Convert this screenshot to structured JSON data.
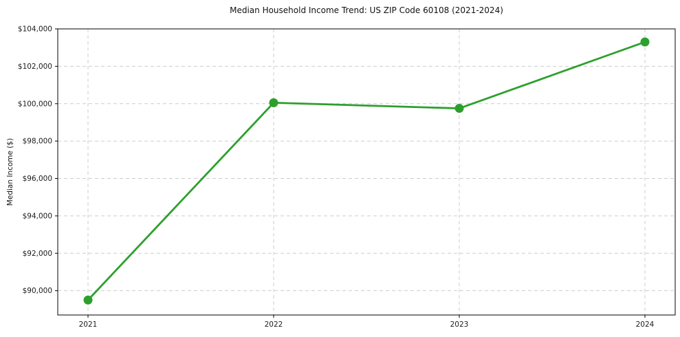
{
  "chart_data": {
    "type": "line",
    "title": "Median Household Income Trend: US ZIP Code 60108 (2021-2024)",
    "ylabel": "Median Income ($)",
    "xlabel": "",
    "x": [
      "2021",
      "2022",
      "2023",
      "2024"
    ],
    "values": [
      89500,
      100050,
      99750,
      103300
    ],
    "yticks": [
      90000,
      92000,
      94000,
      96000,
      98000,
      100000,
      102000,
      104000
    ],
    "ytick_labels": [
      "$90,000",
      "$92,000",
      "$94,000",
      "$96,000",
      "$98,000",
      "$100,000",
      "$102,000",
      "$104,000"
    ],
    "ylim": [
      88700,
      104000
    ],
    "grid": "dashed",
    "grid_color": "#cccccc",
    "line_color": "#2ca02c",
    "marker": "circle",
    "legend": "none"
  }
}
